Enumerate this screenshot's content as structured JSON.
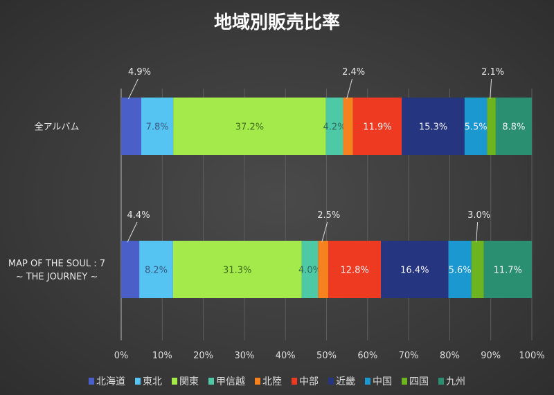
{
  "chart_data": {
    "type": "bar",
    "orientation": "horizontal",
    "stacked": true,
    "title": "地域別販売比率",
    "categories": [
      "全アルバム",
      "MAP OF THE SOUL : 7\n~ THE JOURNEY ~"
    ],
    "category_lines": [
      [
        "全アルバム"
      ],
      [
        "MAP OF THE SOUL : 7",
        "~ THE JOURNEY ~"
      ]
    ],
    "xlim": [
      0,
      100
    ],
    "xticks": [
      "0%",
      "10%",
      "20%",
      "30%",
      "40%",
      "50%",
      "60%",
      "70%",
      "80%",
      "90%",
      "100%"
    ],
    "grid": true,
    "legend_position": "bottom",
    "series": [
      {
        "name": "北海道",
        "color": "#4a5fc8",
        "values": [
          4.9,
          4.4
        ],
        "labels": [
          "4.9%",
          "4.4%"
        ]
      },
      {
        "name": "東北",
        "color": "#55c4f2",
        "values": [
          7.8,
          8.2
        ],
        "labels": [
          "7.8%",
          "8.2%"
        ]
      },
      {
        "name": "関東",
        "color": "#a4ea4a",
        "values": [
          37.2,
          31.3
        ],
        "labels": [
          "37.2%",
          "31.3%"
        ]
      },
      {
        "name": "甲信越",
        "color": "#4ec9a6",
        "values": [
          4.2,
          4.0
        ],
        "labels": [
          "4.2%",
          "4.0%"
        ]
      },
      {
        "name": "北陸",
        "color": "#f5821f",
        "values": [
          2.4,
          2.5
        ],
        "labels": [
          "2.4%",
          "2.5%"
        ]
      },
      {
        "name": "中部",
        "color": "#ef3a22",
        "values": [
          11.9,
          12.8
        ],
        "labels": [
          "11.9%",
          "12.8%"
        ]
      },
      {
        "name": "近畿",
        "color": "#263580",
        "values": [
          15.3,
          16.4
        ],
        "labels": [
          "15.3%",
          "16.4%"
        ]
      },
      {
        "name": "中国",
        "color": "#1b98cf",
        "values": [
          5.5,
          5.6
        ],
        "labels": [
          "5.5%",
          "5.6%"
        ]
      },
      {
        "name": "四国",
        "color": "#6cb521",
        "values": [
          2.1,
          3.0
        ],
        "labels": [
          "2.1%",
          "3.0%"
        ]
      },
      {
        "name": "九州",
        "color": "#2a8f70",
        "values": [
          8.8,
          11.7
        ],
        "labels": [
          "8.8%",
          "11.7%"
        ]
      }
    ]
  }
}
